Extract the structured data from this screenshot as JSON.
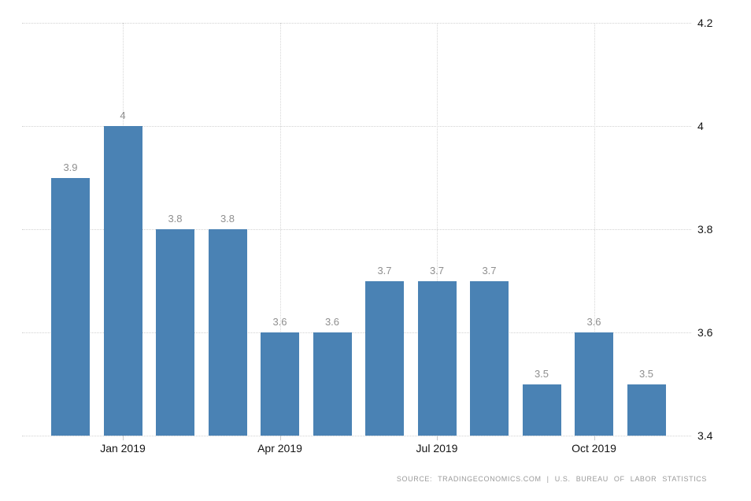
{
  "chart_data": {
    "type": "bar",
    "title": "",
    "values": [
      3.9,
      4,
      3.8,
      3.8,
      3.6,
      3.6,
      3.7,
      3.7,
      3.7,
      3.5,
      3.6,
      3.5
    ],
    "bar_value_labels": [
      "3.9",
      "4",
      "3.8",
      "3.8",
      "3.6",
      "3.6",
      "3.7",
      "3.7",
      "3.7",
      "3.5",
      "3.6",
      "3.5"
    ],
    "x_ticks": [
      {
        "label": "Jan 2019",
        "bar_index": 1
      },
      {
        "label": "Apr 2019",
        "bar_index": 4
      },
      {
        "label": "Jul 2019",
        "bar_index": 7
      },
      {
        "label": "Oct 2019",
        "bar_index": 10
      }
    ],
    "y_ticks": [
      "4.2",
      "4",
      "3.8",
      "3.6",
      "3.4"
    ],
    "ylim": [
      3.4,
      4.2
    ],
    "grid": true,
    "legend_position": "none",
    "bar_color": "#4a82b4",
    "value_label_color": "#8f8f8f",
    "axis_label_color": "#141414",
    "gridline_color": "#d2d2d2",
    "background_color": "#ffffff"
  },
  "footer": {
    "source_text": "SOURCE: TRADINGECONOMICS.COM | U.S. BUREAU OF LABOR STATISTICS"
  }
}
